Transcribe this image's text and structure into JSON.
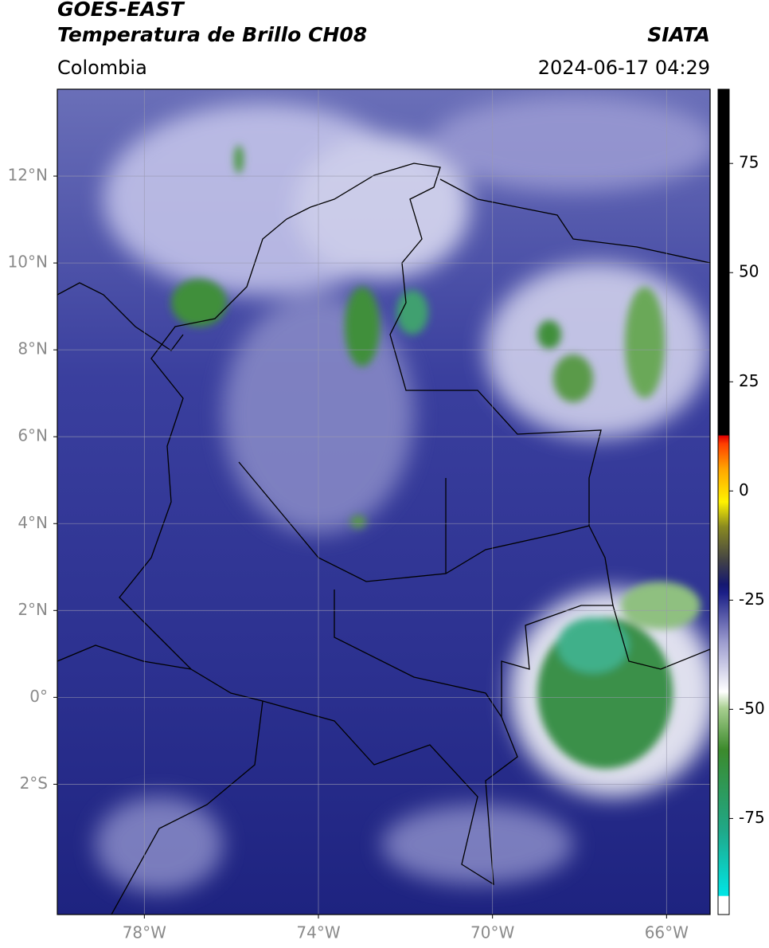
{
  "header": {
    "title": "GOES-EAST",
    "subtitle": "Temperatura de Brillo CH08",
    "source": "SIATA",
    "region": "Colombia",
    "datetime": "2024-06-17 04:29"
  },
  "map": {
    "xlim": [
      -80,
      -65
    ],
    "ylim": [
      -5,
      14
    ],
    "xticks": [
      {
        "value": -78,
        "label": "78°W"
      },
      {
        "value": -74,
        "label": "74°W"
      },
      {
        "value": -70,
        "label": "70°W"
      },
      {
        "value": -66,
        "label": "66°W"
      }
    ],
    "yticks": [
      {
        "value": 12,
        "label": "12°N"
      },
      {
        "value": 10,
        "label": "10°N"
      },
      {
        "value": 8,
        "label": "8°N"
      },
      {
        "value": 6,
        "label": "6°N"
      },
      {
        "value": 4,
        "label": "4°N"
      },
      {
        "value": 2,
        "label": "2°N"
      },
      {
        "value": 0,
        "label": "0°"
      },
      {
        "value": -2,
        "label": "2°S"
      }
    ],
    "grid": true
  },
  "colorbar": {
    "clim": [
      -97,
      92
    ],
    "ticks": [
      75,
      50,
      25,
      0,
      -25,
      -50,
      -75
    ]
  }
}
